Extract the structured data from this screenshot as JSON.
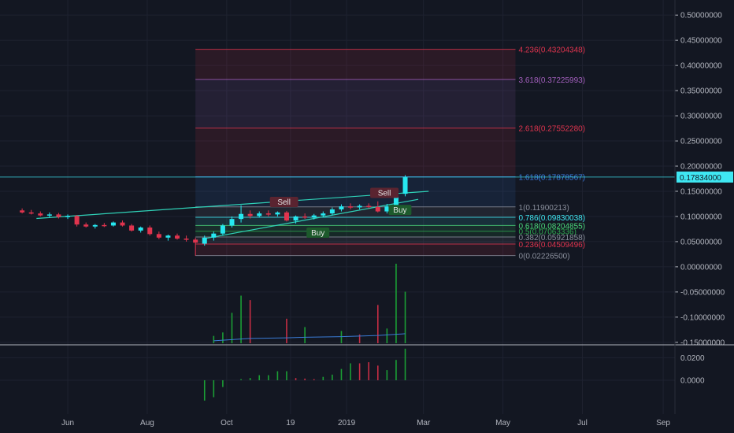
{
  "colors": {
    "background": "#131722",
    "grid": "#1e2230",
    "text": "#b2b5be",
    "bull": "#26e8f0",
    "bear": "#e0344e",
    "trendline": "#2fd1b7",
    "price_badge": "#3fe7f2",
    "volume_bull": "#1b9e35",
    "volume_bear": "#c72d44",
    "volume_ma": "#3a7bd5"
  },
  "chart_data": [
    {
      "type": "candlestick",
      "title": "",
      "xlabel": "",
      "ylabel": "",
      "ylim": [
        -0.155,
        0.53
      ],
      "y_ticks": [
        "0.50000000",
        "0.45000000",
        "0.40000000",
        "0.35000000",
        "0.30000000",
        "0.25000000",
        "0.20000000",
        "0.15000000",
        "0.10000000",
        "0.05000000",
        "0.00000000",
        "-0.05000000",
        "-0.10000000",
        "-0.15000000"
      ],
      "y_tick_values": [
        0.5,
        0.45,
        0.4,
        0.35,
        0.3,
        0.25,
        0.2,
        0.15,
        0.1,
        0.05,
        0.0,
        -0.05,
        -0.1,
        -0.15
      ],
      "x_ticks": [
        "Jun",
        "Aug",
        "Oct",
        "19",
        "2019",
        "Mar",
        "May",
        "Jul",
        "Sep"
      ],
      "x_tick_dates": [
        "2018-06-01",
        "2018-08-01",
        "2018-10-01",
        "2018-11-19",
        "2019-01-01",
        "2019-03-01",
        "2019-05-01",
        "2019-07-01",
        "2019-09-01"
      ],
      "x_range": [
        "2018-04-10",
        "2019-09-10"
      ],
      "grid": true,
      "last_price": "0.17834000",
      "last_price_value": 0.17834,
      "candles": [
        {
          "date": "2018-04-27",
          "open": 0.112,
          "high": 0.116,
          "low": 0.106,
          "close": 0.108
        },
        {
          "date": "2018-05-04",
          "open": 0.108,
          "high": 0.113,
          "low": 0.104,
          "close": 0.106
        },
        {
          "date": "2018-05-11",
          "open": 0.106,
          "high": 0.11,
          "low": 0.1,
          "close": 0.102
        },
        {
          "date": "2018-05-18",
          "open": 0.102,
          "high": 0.108,
          "low": 0.098,
          "close": 0.104
        },
        {
          "date": "2018-05-25",
          "open": 0.104,
          "high": 0.107,
          "low": 0.096,
          "close": 0.099
        },
        {
          "date": "2018-06-01",
          "open": 0.099,
          "high": 0.104,
          "low": 0.095,
          "close": 0.101
        },
        {
          "date": "2018-06-08",
          "open": 0.101,
          "high": 0.103,
          "low": 0.08,
          "close": 0.084
        },
        {
          "date": "2018-06-15",
          "open": 0.084,
          "high": 0.088,
          "low": 0.078,
          "close": 0.08
        },
        {
          "date": "2018-06-22",
          "open": 0.08,
          "high": 0.085,
          "low": 0.076,
          "close": 0.083
        },
        {
          "date": "2018-06-29",
          "open": 0.083,
          "high": 0.087,
          "low": 0.079,
          "close": 0.082
        },
        {
          "date": "2018-07-06",
          "open": 0.082,
          "high": 0.09,
          "low": 0.08,
          "close": 0.088
        },
        {
          "date": "2018-07-13",
          "open": 0.088,
          "high": 0.092,
          "low": 0.08,
          "close": 0.082
        },
        {
          "date": "2018-07-20",
          "open": 0.082,
          "high": 0.085,
          "low": 0.07,
          "close": 0.072
        },
        {
          "date": "2018-07-27",
          "open": 0.072,
          "high": 0.08,
          "low": 0.068,
          "close": 0.078
        },
        {
          "date": "2018-08-03",
          "open": 0.078,
          "high": 0.082,
          "low": 0.062,
          "close": 0.065
        },
        {
          "date": "2018-08-10",
          "open": 0.065,
          "high": 0.07,
          "low": 0.055,
          "close": 0.058
        },
        {
          "date": "2018-08-17",
          "open": 0.058,
          "high": 0.064,
          "low": 0.052,
          "close": 0.062
        },
        {
          "date": "2018-08-24",
          "open": 0.062,
          "high": 0.066,
          "low": 0.054,
          "close": 0.056
        },
        {
          "date": "2018-08-31",
          "open": 0.056,
          "high": 0.062,
          "low": 0.05,
          "close": 0.054
        },
        {
          "date": "2018-09-07",
          "open": 0.054,
          "high": 0.058,
          "low": 0.022,
          "close": 0.048
        },
        {
          "date": "2018-09-14",
          "open": 0.046,
          "high": 0.062,
          "low": 0.042,
          "close": 0.058
        },
        {
          "date": "2018-09-21",
          "open": 0.058,
          "high": 0.07,
          "low": 0.052,
          "close": 0.066
        },
        {
          "date": "2018-09-28",
          "open": 0.066,
          "high": 0.085,
          "low": 0.062,
          "close": 0.082
        },
        {
          "date": "2018-10-05",
          "open": 0.082,
          "high": 0.1,
          "low": 0.078,
          "close": 0.095
        },
        {
          "date": "2018-10-12",
          "open": 0.095,
          "high": 0.122,
          "low": 0.088,
          "close": 0.105
        },
        {
          "date": "2018-10-19",
          "open": 0.105,
          "high": 0.112,
          "low": 0.096,
          "close": 0.101
        },
        {
          "date": "2018-10-26",
          "open": 0.101,
          "high": 0.11,
          "low": 0.098,
          "close": 0.106
        },
        {
          "date": "2018-11-02",
          "open": 0.106,
          "high": 0.112,
          "low": 0.1,
          "close": 0.104
        },
        {
          "date": "2018-11-09",
          "open": 0.104,
          "high": 0.11,
          "low": 0.1,
          "close": 0.108
        },
        {
          "date": "2018-11-16",
          "open": 0.108,
          "high": 0.111,
          "low": 0.09,
          "close": 0.092
        },
        {
          "date": "2018-11-23",
          "open": 0.092,
          "high": 0.102,
          "low": 0.086,
          "close": 0.1
        },
        {
          "date": "2018-11-30",
          "open": 0.1,
          "high": 0.106,
          "low": 0.095,
          "close": 0.098
        },
        {
          "date": "2018-12-07",
          "open": 0.098,
          "high": 0.105,
          "low": 0.094,
          "close": 0.102
        },
        {
          "date": "2018-12-14",
          "open": 0.102,
          "high": 0.11,
          "low": 0.098,
          "close": 0.106
        },
        {
          "date": "2018-12-21",
          "open": 0.106,
          "high": 0.118,
          "low": 0.102,
          "close": 0.114
        },
        {
          "date": "2018-12-28",
          "open": 0.114,
          "high": 0.124,
          "low": 0.11,
          "close": 0.12
        },
        {
          "date": "2019-01-04",
          "open": 0.12,
          "high": 0.126,
          "low": 0.114,
          "close": 0.118
        },
        {
          "date": "2019-01-11",
          "open": 0.118,
          "high": 0.124,
          "low": 0.114,
          "close": 0.121
        },
        {
          "date": "2019-01-18",
          "open": 0.121,
          "high": 0.126,
          "low": 0.116,
          "close": 0.119
        },
        {
          "date": "2019-01-25",
          "open": 0.119,
          "high": 0.13,
          "low": 0.108,
          "close": 0.11
        },
        {
          "date": "2019-02-01",
          "open": 0.11,
          "high": 0.125,
          "low": 0.106,
          "close": 0.12
        },
        {
          "date": "2019-02-08",
          "open": 0.12,
          "high": 0.15,
          "low": 0.118,
          "close": 0.145
        },
        {
          "date": "2019-02-15",
          "open": 0.145,
          "high": 0.182,
          "low": 0.14,
          "close": 0.178
        }
      ],
      "volume": [
        {
          "date": "2018-09-21",
          "value": 0.15,
          "dir": "bull"
        },
        {
          "date": "2018-09-28",
          "value": 0.22,
          "dir": "bull"
        },
        {
          "date": "2018-10-05",
          "value": 0.62,
          "dir": "bull"
        },
        {
          "date": "2018-10-12",
          "value": 0.97,
          "dir": "bull"
        },
        {
          "date": "2018-10-19",
          "value": 0.88,
          "dir": "bear"
        },
        {
          "date": "2018-11-16",
          "value": 0.5,
          "dir": "bear"
        },
        {
          "date": "2018-11-30",
          "value": 0.33,
          "dir": "bull"
        },
        {
          "date": "2018-12-28",
          "value": 0.25,
          "dir": "bull"
        },
        {
          "date": "2019-01-11",
          "value": 0.18,
          "dir": "bear"
        },
        {
          "date": "2019-01-25",
          "value": 0.78,
          "dir": "bear"
        },
        {
          "date": "2019-02-01",
          "value": 0.3,
          "dir": "bull"
        },
        {
          "date": "2019-02-08",
          "value": 1.62,
          "dir": "bull"
        },
        {
          "date": "2019-02-15",
          "value": 1.05,
          "dir": "bull"
        }
      ],
      "fibonacci": [
        {
          "ratio": "4.236",
          "value": "0.43204348",
          "y": 0.43204348,
          "color": "#e0344e"
        },
        {
          "ratio": "3.618",
          "value": "0.37225993",
          "y": 0.37225993,
          "color": "#a35fbd"
        },
        {
          "ratio": "2.618",
          "value": "0.27552280",
          "y": 0.2755228,
          "color": "#e0344e"
        },
        {
          "ratio": "1.618",
          "value": "0.17878567",
          "y": 0.17878567,
          "color": "#3b7be0"
        },
        {
          "ratio": "1",
          "value": "0.11900213",
          "y": 0.11900213,
          "color": "#8a8f9c"
        },
        {
          "ratio": "0.786",
          "value": "0.09830038",
          "y": 0.09830038,
          "color": "#3fe7f2"
        },
        {
          "ratio": "0.618",
          "value": "0.08204855",
          "y": 0.08204855,
          "color": "#4cd97b"
        },
        {
          "ratio": "0.5",
          "value": "0.07063336",
          "y": 0.07063336,
          "color": "#2ea84f"
        },
        {
          "ratio": "0.382",
          "value": "0.05921858",
          "y": 0.05921858,
          "color": "#8a8f9c"
        },
        {
          "ratio": "0.236",
          "value": "0.04509496",
          "y": 0.04509496,
          "color": "#e0344e"
        },
        {
          "ratio": "0",
          "value": "0.02226500",
          "y": 0.022265,
          "color": "#8a8f9c"
        }
      ],
      "fib_x_range": [
        "2018-09-07",
        "2019-02-15"
      ],
      "annotations": [
        {
          "text": "Sell",
          "date": "2018-11-14",
          "y": 0.125,
          "kind": "sell"
        },
        {
          "text": "Sell",
          "date": "2019-01-30",
          "y": 0.143,
          "kind": "sell"
        },
        {
          "text": "Buy",
          "date": "2019-02-11",
          "y": 0.109,
          "kind": "buy"
        },
        {
          "text": "Buy",
          "date": "2018-12-10",
          "y": 0.064,
          "kind": "buy"
        }
      ],
      "trendlines": [
        {
          "from": {
            "date": "2018-05-08",
            "y": 0.096
          },
          "to": {
            "date": "2019-03-05",
            "y": 0.15
          }
        },
        {
          "from": {
            "date": "2018-09-14",
            "y": 0.056
          },
          "to": {
            "date": "2019-02-25",
            "y": 0.134
          }
        }
      ]
    },
    {
      "type": "bar",
      "title": "",
      "ylim": [
        -0.03,
        0.03
      ],
      "y_ticks": [
        "0.0200",
        "0.0000"
      ],
      "y_tick_values": [
        0.02,
        0.0
      ],
      "bars": [
        {
          "date": "2018-09-14",
          "value": -0.018,
          "dir": "bull"
        },
        {
          "date": "2018-09-21",
          "value": -0.015,
          "dir": "bull"
        },
        {
          "date": "2018-09-28",
          "value": -0.006,
          "dir": "bull"
        },
        {
          "date": "2018-10-12",
          "value": 0.001,
          "dir": "bull"
        },
        {
          "date": "2018-10-19",
          "value": 0.002,
          "dir": "bull"
        },
        {
          "date": "2018-10-26",
          "value": 0.0045,
          "dir": "bull"
        },
        {
          "date": "2018-11-02",
          "value": 0.0045,
          "dir": "bull"
        },
        {
          "date": "2018-11-09",
          "value": 0.008,
          "dir": "bull"
        },
        {
          "date": "2018-11-16",
          "value": 0.008,
          "dir": "bull"
        },
        {
          "date": "2018-11-23",
          "value": 0.002,
          "dir": "bear"
        },
        {
          "date": "2018-11-30",
          "value": 0.0015,
          "dir": "bear"
        },
        {
          "date": "2018-12-07",
          "value": 0.001,
          "dir": "bear"
        },
        {
          "date": "2018-12-14",
          "value": 0.003,
          "dir": "bull"
        },
        {
          "date": "2018-12-21",
          "value": 0.005,
          "dir": "bull"
        },
        {
          "date": "2018-12-28",
          "value": 0.01,
          "dir": "bull"
        },
        {
          "date": "2019-01-04",
          "value": 0.015,
          "dir": "bull"
        },
        {
          "date": "2019-01-11",
          "value": 0.015,
          "dir": "bear"
        },
        {
          "date": "2019-01-18",
          "value": 0.016,
          "dir": "bear"
        },
        {
          "date": "2019-01-25",
          "value": 0.013,
          "dir": "bear"
        },
        {
          "date": "2019-02-01",
          "value": 0.009,
          "dir": "bull"
        },
        {
          "date": "2019-02-08",
          "value": 0.018,
          "dir": "bull"
        },
        {
          "date": "2019-02-15",
          "value": 0.028,
          "dir": "bull"
        }
      ]
    }
  ]
}
